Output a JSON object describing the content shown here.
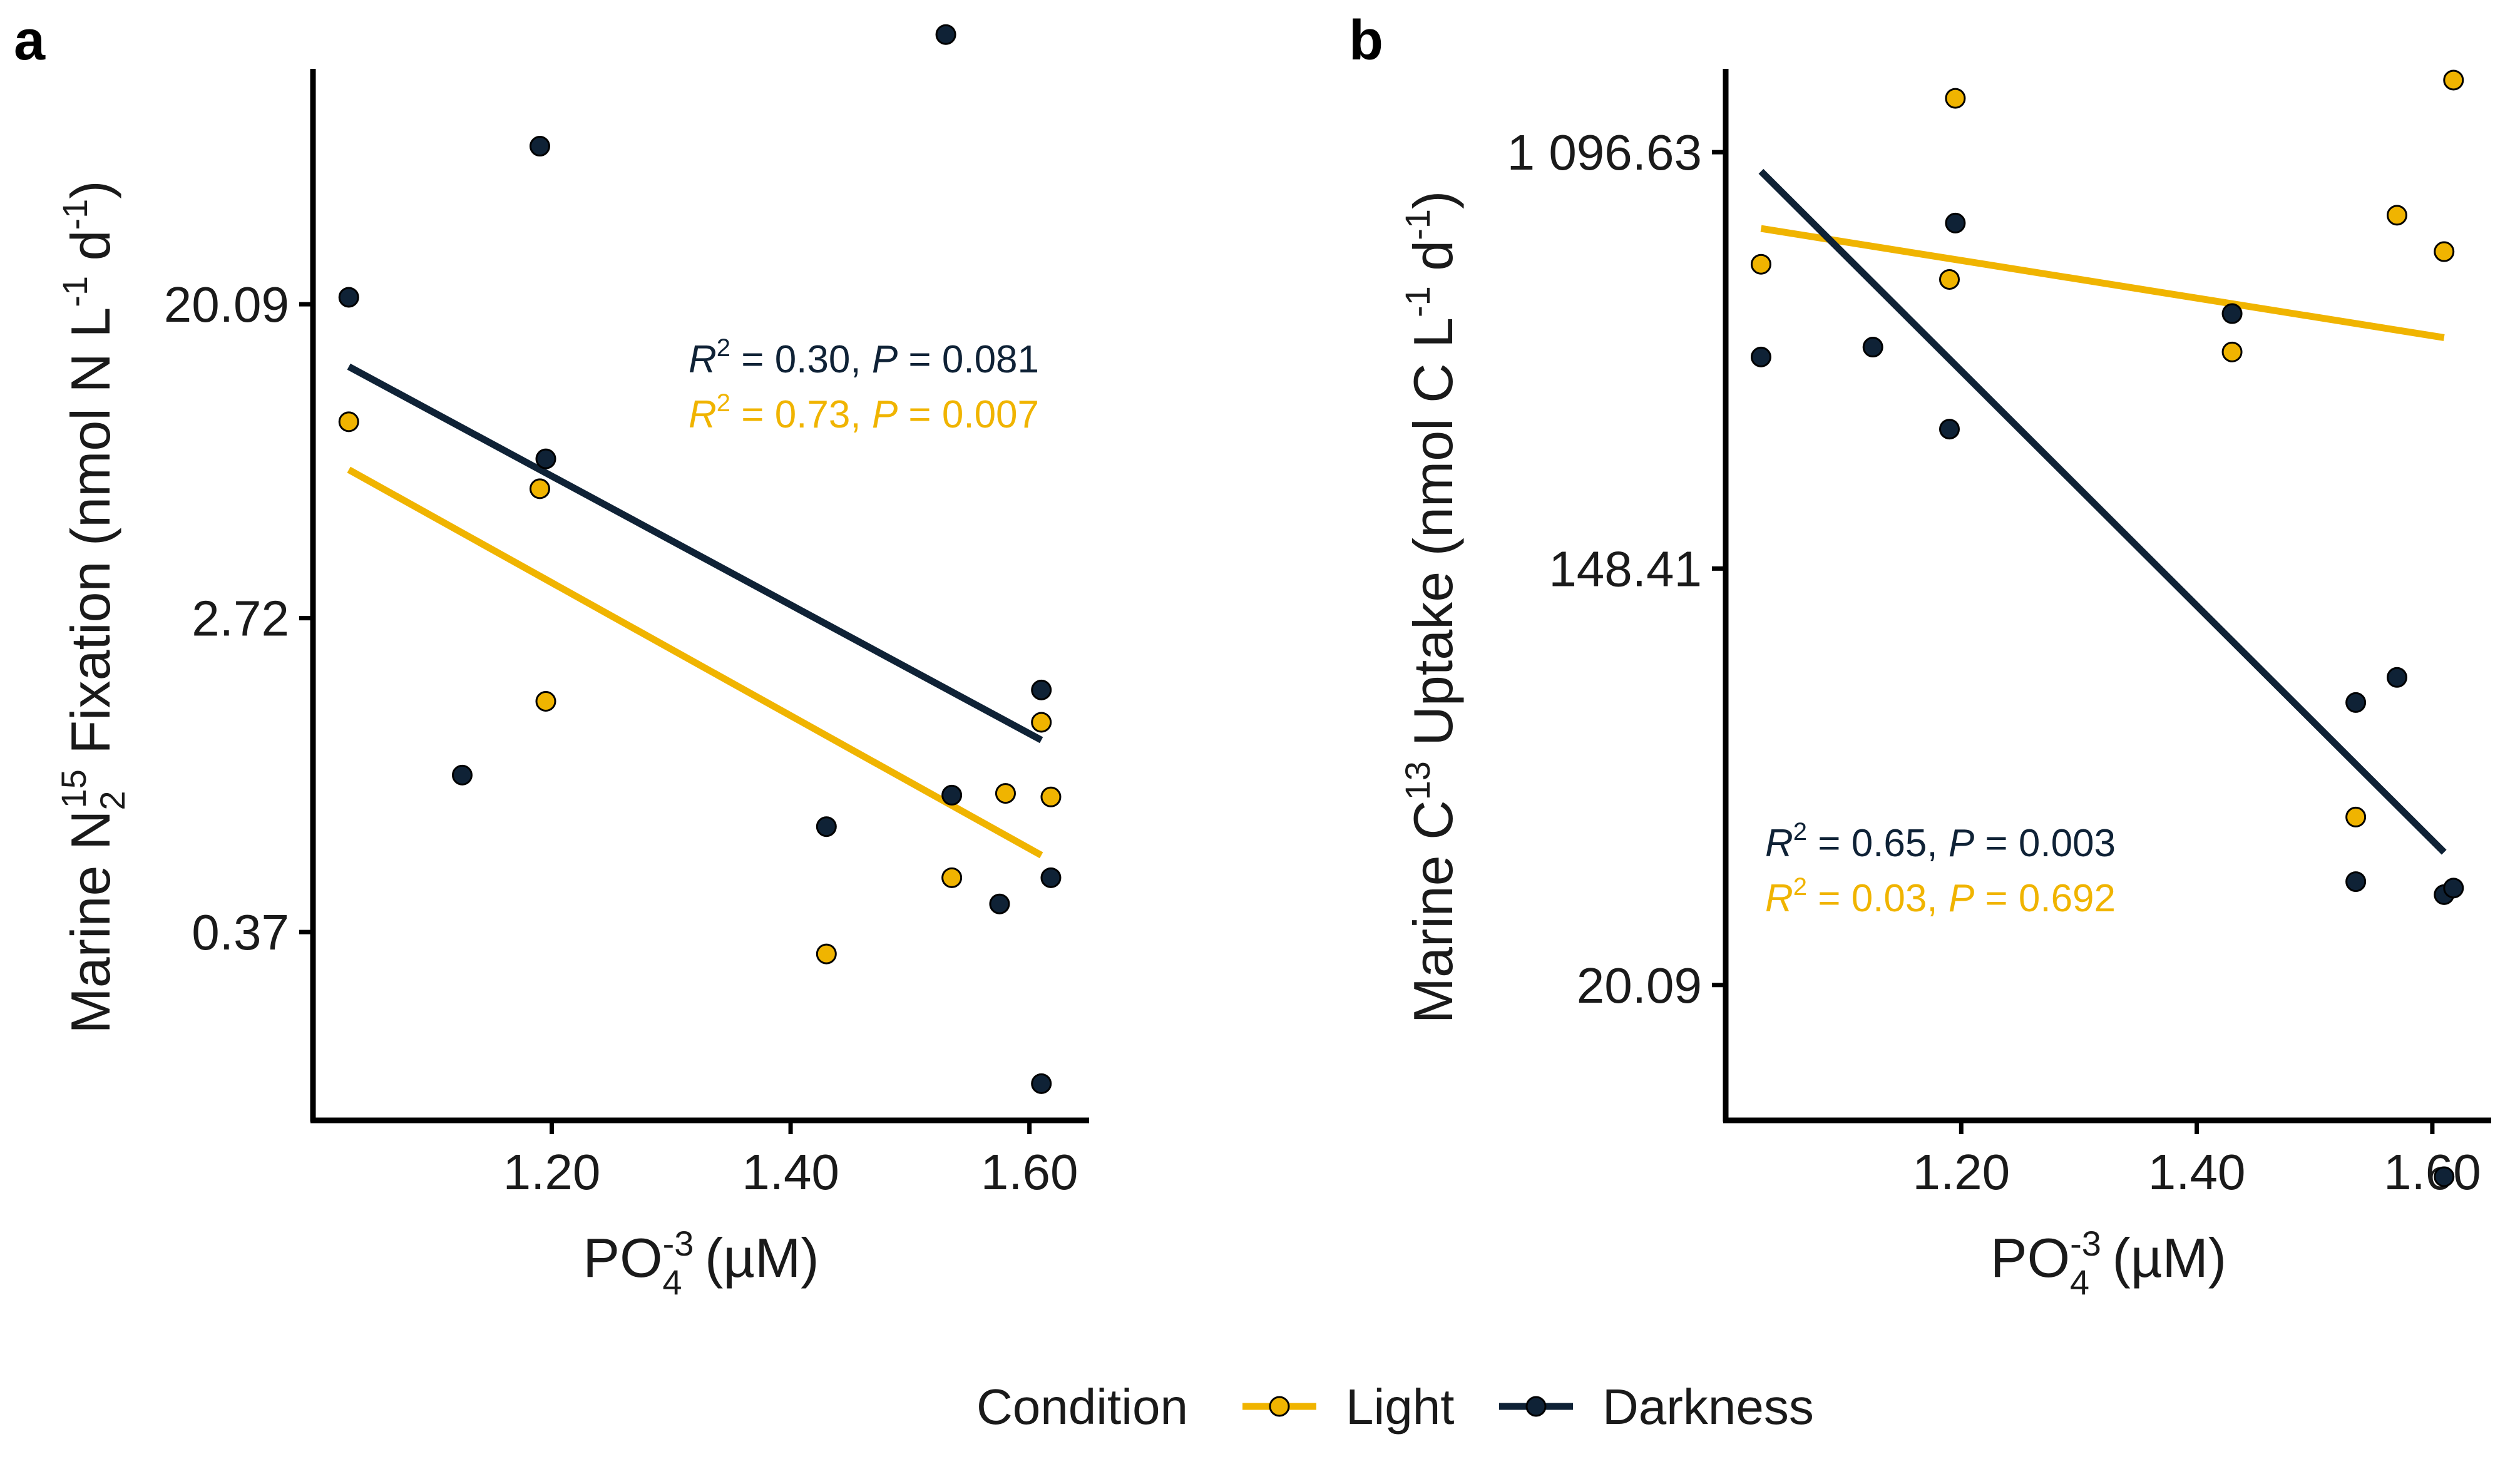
{
  "colors": {
    "light": "#f0b400",
    "darkness": "#0f2236",
    "axis": "#000000",
    "text": "#1a1a1a"
  },
  "legend": {
    "title": "Condition",
    "items": [
      {
        "key": "light",
        "label": "Light"
      },
      {
        "key": "darkness",
        "label": "Darkness"
      }
    ]
  },
  "chart_data": [
    {
      "panel": "a",
      "type": "scatter",
      "title": "",
      "xlabel": "PO₄⁻³ (µM)",
      "ylabel": "Marine N₂¹⁵ Fixation (nmol N L⁻¹ d⁻¹)",
      "ylabel_parts": {
        "pre": "Marine N",
        "sub": "2",
        "sup": "15",
        "mid": " Fixation (nmol N L",
        "sup2": "-1",
        "mid2": " d",
        "sup3": "-1",
        "post": ")"
      },
      "xlabel_parts": {
        "pre": "PO",
        "sup": "-3",
        "sub": "4",
        "post": " (µM)"
      },
      "y_scale": "log",
      "xlim": [
        1.0,
        1.65
      ],
      "ylim_ln": [
        -2.2,
        4.5
      ],
      "x_ticks": [
        1.2,
        1.4,
        1.6
      ],
      "x_tick_labels": [
        "1.20",
        "1.40",
        "1.60"
      ],
      "y_ticks_ln": [
        -1,
        1,
        3
      ],
      "y_tick_labels": [
        "0.37",
        "2.72",
        "20.09"
      ],
      "series": [
        {
          "name": "Light",
          "points": [
            {
              "x": 1.03,
              "y": 9.5
            },
            {
              "x": 1.19,
              "y": 6.2
            },
            {
              "x": 1.195,
              "y": 1.6
            },
            {
              "x": 1.43,
              "y": 0.32
            },
            {
              "x": 1.535,
              "y": 0.52
            },
            {
              "x": 1.58,
              "y": 0.89
            },
            {
              "x": 1.61,
              "y": 1.4
            },
            {
              "x": 1.618,
              "y": 0.87
            }
          ],
          "fit": {
            "x": [
              1.03,
              1.61
            ],
            "y": [
              7.0,
              0.6
            ]
          },
          "annotation": {
            "r2_label": "R",
            "r2_sup": "2",
            "r2": "0.73",
            "p_label": "P",
            "p": "0.007"
          }
        },
        {
          "name": "Darkness",
          "points": [
            {
              "x": 1.03,
              "y": 21.0
            },
            {
              "x": 1.125,
              "y": 1.0
            },
            {
              "x": 1.19,
              "y": 55.0
            },
            {
              "x": 1.195,
              "y": 7.5
            },
            {
              "x": 1.43,
              "y": 0.72
            },
            {
              "x": 1.535,
              "y": 0.88
            },
            {
              "x": 1.53,
              "y": 112.0
            },
            {
              "x": 1.575,
              "y": 0.44
            },
            {
              "x": 1.61,
              "y": 1.72
            },
            {
              "x": 1.61,
              "y": 0.14
            },
            {
              "x": 1.618,
              "y": 0.52
            }
          ],
          "fit": {
            "x": [
              1.03,
              1.61
            ],
            "y": [
              13.5,
              1.25
            ]
          },
          "annotation": {
            "r2_label": "R",
            "r2_sup": "2",
            "r2": "0.30",
            "p_label": "P",
            "p": "0.081"
          }
        }
      ]
    },
    {
      "panel": "b",
      "type": "scatter",
      "title": "",
      "xlabel": "PO₄⁻³ (µM)",
      "ylabel": "Marine C¹³ Uptake (nmol C L⁻¹ d⁻¹)",
      "ylabel_parts": {
        "pre": "Marine C",
        "sup": "13",
        "mid": " Uptake (nmol C L",
        "sup2": "-1",
        "mid2": " d",
        "sup3": "-1",
        "post": ")"
      },
      "xlabel_parts": {
        "pre": "PO",
        "sup": "-3",
        "sub": "4",
        "post": " (µM)"
      },
      "y_scale": "log",
      "xlim": [
        1.0,
        1.65
      ],
      "ylim_ln": [
        2.35,
        7.4
      ],
      "x_ticks": [
        1.2,
        1.4,
        1.6
      ],
      "x_tick_labels": [
        "1.20",
        "1.40",
        "1.60"
      ],
      "y_ticks_ln": [
        3,
        5,
        7
      ],
      "y_tick_labels": [
        "20.09",
        "148.41",
        "1 096.63"
      ],
      "series": [
        {
          "name": "Light",
          "points": [
            {
              "x": 1.03,
              "y": 640
            },
            {
              "x": 1.195,
              "y": 1420
            },
            {
              "x": 1.19,
              "y": 595
            },
            {
              "x": 1.43,
              "y": 420
            },
            {
              "x": 1.535,
              "y": 45
            },
            {
              "x": 1.57,
              "y": 810
            },
            {
              "x": 1.61,
              "y": 680
            },
            {
              "x": 1.618,
              "y": 1550
            }
          ],
          "fit": {
            "x": [
              1.03,
              1.61
            ],
            "y": [
              760,
              450
            ]
          },
          "annotation": {
            "r2_label": "R",
            "r2_sup": "2",
            "r2": "0.03",
            "p_label": "P",
            "p": "0.692"
          }
        },
        {
          "name": "Darkness",
          "points": [
            {
              "x": 1.03,
              "y": 410
            },
            {
              "x": 1.125,
              "y": 430
            },
            {
              "x": 1.19,
              "y": 290
            },
            {
              "x": 1.195,
              "y": 780
            },
            {
              "x": 1.43,
              "y": 505
            },
            {
              "x": 1.535,
              "y": 78
            },
            {
              "x": 1.535,
              "y": 33
            },
            {
              "x": 1.57,
              "y": 88
            },
            {
              "x": 1.61,
              "y": 31
            },
            {
              "x": 1.61,
              "y": 8.0
            },
            {
              "x": 1.618,
              "y": 32
            }
          ],
          "fit": {
            "x": [
              1.03,
              1.61
            ],
            "y": [
              1000,
              38
            ]
          },
          "annotation": {
            "r2_label": "R",
            "r2_sup": "2",
            "r2": "0.65",
            "p_label": "P",
            "p": "0.003"
          }
        }
      ]
    }
  ]
}
